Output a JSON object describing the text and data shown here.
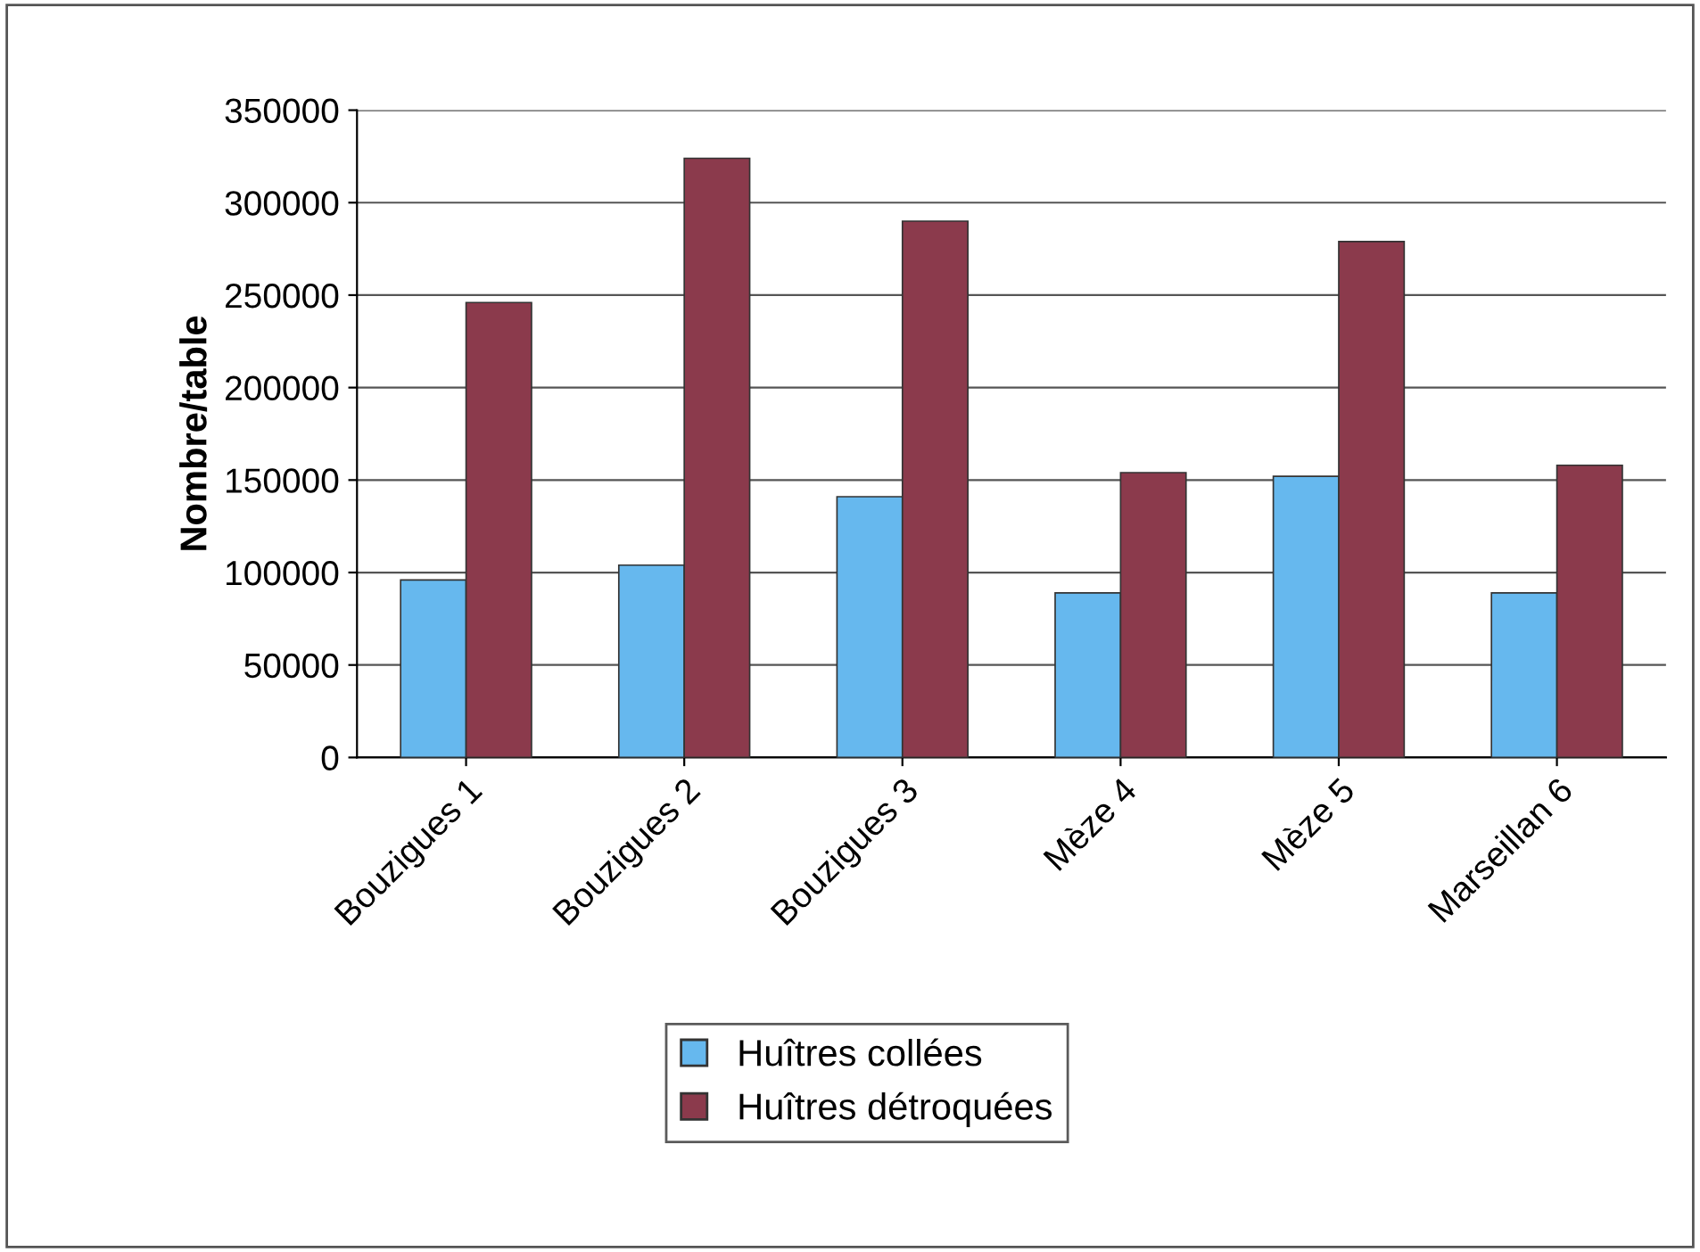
{
  "chart_data": {
    "type": "bar",
    "ylabel": "Nombre/table",
    "categories": [
      "Bouzigues 1",
      "Bouzigues 2",
      "Bouzigues 3",
      "Mèze 4",
      "Mèze 5",
      "Marseillan 6"
    ],
    "series": [
      {
        "name": "Huîtres collées",
        "color": "#66b8ee",
        "values": [
          96000,
          104000,
          141000,
          89000,
          152000,
          89000
        ]
      },
      {
        "name": "Huîtres détroquées",
        "color": "#8b3a4c",
        "values": [
          246000,
          324000,
          290000,
          154000,
          279000,
          158000
        ]
      }
    ],
    "ylim": [
      0,
      350000
    ],
    "yticks": [
      0,
      50000,
      100000,
      150000,
      200000,
      250000,
      300000,
      350000
    ],
    "grid": "y",
    "legend": "bottom"
  }
}
